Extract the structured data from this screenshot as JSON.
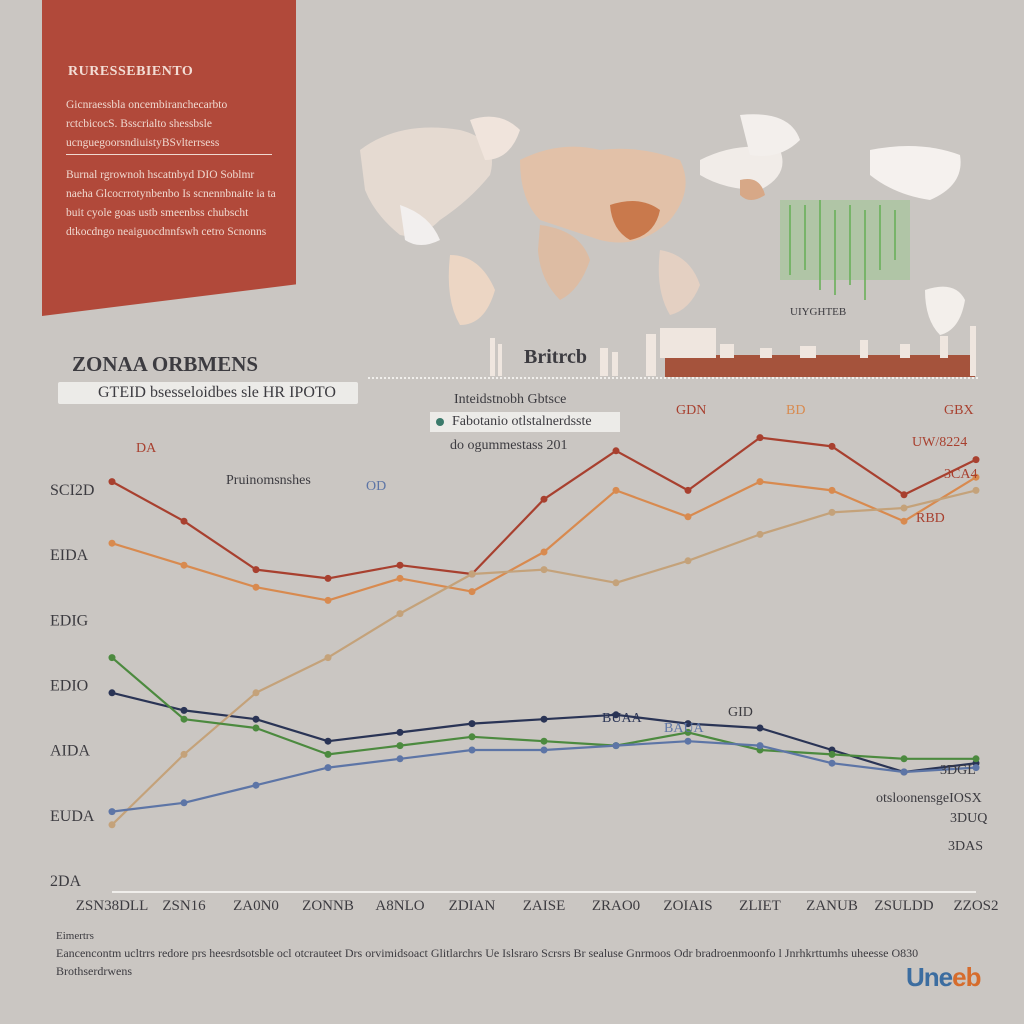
{
  "banner": {
    "title": "RURESSEBIENTO",
    "para1": "Gicnraessbla oncembiranchecarbto rctcbicocS. Bsscrialto shessbsle ucnguegoorsndiuistyBSvlterrsess",
    "para2": "Burnal rgrownoh hscatnbyd DIO Soblmr naeha Glcocrrotynbenbo Is scnennbnaite ia ta buit cyole goas ustb smeenbss chubscht dtkocdngo neaiguocdnnfswh cetro Scnonns"
  },
  "map_label": "UIYGHTEB",
  "skyline_label": "Britrcb",
  "section_title": "ZONAA ORBMENS",
  "subtitle": "GTEID bsesseloidbes sle HR IPOTO",
  "legend": {
    "line1": "Inteidstnobh Gbtsce",
    "line2": "Fabotanio otlstalnerdsste",
    "line3": "do ogummestass 201"
  },
  "annotations": {
    "top_left": "DA",
    "mid_left": "Pruinomsnshes",
    "mid_small": "OD",
    "gdn": "GDN",
    "bd": "BD",
    "gbs": "GBX",
    "uw": "UW/8224",
    "ra": "3CA4",
    "rbd": "RBD",
    "lower_a": "BUAA",
    "lower_b": "BAUA",
    "lower_c": "GID",
    "right_a": "3DGL",
    "right_b": "otsloonensgeIOSX",
    "right_c": "3DUQ",
    "right_d": "3DAS"
  },
  "colors": {
    "background": "#cac6c2",
    "banner": "#b1493a",
    "red_series": "#a8402f",
    "orange_series": "#d88a4f",
    "navy_series": "#2a3455",
    "tan_series": "#c4a27a",
    "green_series": "#4c8a3f",
    "blue_series": "#5d75a6"
  },
  "chart_data": {
    "type": "line",
    "title": "ZONAA ORBMENS",
    "subtitle": "GTEID bsesseloidbes sle HR IPOTO",
    "x": [
      "ZSN38DLL",
      "ZSN16",
      "ZA0N0",
      "ZONNB",
      "A8NLO",
      "ZDIAN",
      "ZAISE",
      "ZRAO0",
      "ZOIAIS",
      "ZLIET",
      "ZANUB",
      "ZSULDD",
      "ZZOS2"
    ],
    "y_tick_labels": [
      "SCI2D",
      "EIDA",
      "EDIG",
      "EDIO",
      "AIDA",
      "EUDA",
      "2DA"
    ],
    "grid": false,
    "series": [
      {
        "color": "#a8402f",
        "values": [
          8.6,
          7.7,
          6.6,
          6.4,
          6.7,
          6.5,
          8.2,
          9.3,
          8.4,
          9.6,
          9.4,
          8.3,
          9.1
        ]
      },
      {
        "color": "#d88a4f",
        "values": [
          7.2,
          6.7,
          6.2,
          5.9,
          6.4,
          6.1,
          7.0,
          8.4,
          7.8,
          8.6,
          8.4,
          7.7,
          8.7
        ]
      },
      {
        "color": "#2a3455",
        "values": [
          3.8,
          3.4,
          3.2,
          2.7,
          2.9,
          3.1,
          3.2,
          3.3,
          3.1,
          3.0,
          2.5,
          2.0,
          2.2
        ]
      },
      {
        "color": "#c4a27a",
        "values": [
          0.8,
          2.4,
          3.8,
          4.6,
          5.6,
          6.5,
          6.6,
          6.3,
          6.8,
          7.4,
          7.9,
          8.0,
          8.4
        ]
      },
      {
        "color": "#4c8a3f",
        "values": [
          4.6,
          3.2,
          3.0,
          2.4,
          2.6,
          2.8,
          2.7,
          2.6,
          2.9,
          2.5,
          2.4,
          2.3,
          2.3
        ]
      },
      {
        "color": "#5d75a6",
        "values": [
          1.1,
          1.3,
          1.7,
          2.1,
          2.3,
          2.5,
          2.5,
          2.6,
          2.7,
          2.6,
          2.2,
          2.0,
          2.1
        ]
      }
    ]
  },
  "footer": {
    "small": "Eimertrs",
    "text": "Eancencontm ucltrrs redore prs heesrdsotsble ocl otcrauteet Drs orvimidsoact Glitlarchrs Ue Islsraro Scrsrs Br sealuse Gnrmoos Odr bradroenmoonfo l Jnrhkrttumhs uheesse O830 Brothserdrwens",
    "brand_a": "Une",
    "brand_b": "eb"
  }
}
